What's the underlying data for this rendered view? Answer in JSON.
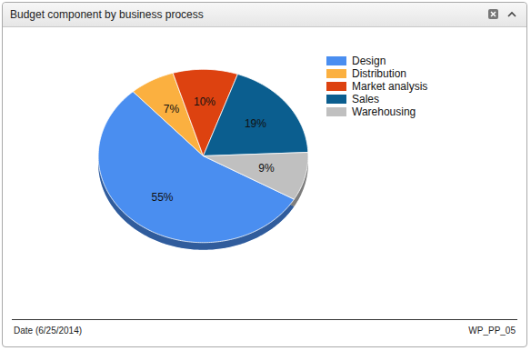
{
  "chart_data": {
    "type": "pie",
    "title": "Budget component by business process",
    "categories": [
      "Design",
      "Distribution",
      "Market analysis",
      "Sales",
      "Warehousing"
    ],
    "values": [
      55,
      7,
      10,
      19,
      9
    ],
    "value_labels": [
      "55%",
      "7%",
      "10%",
      "19%",
      "9%"
    ],
    "colors": [
      "#4a8ef0",
      "#fbb040",
      "#dd4210",
      "#0b5e8f",
      "#c0c0c0"
    ],
    "data_labels": true,
    "legend": "top-right"
  },
  "footer": {
    "left": "Date (6/25/2014)",
    "right": "WP_PP_05"
  }
}
